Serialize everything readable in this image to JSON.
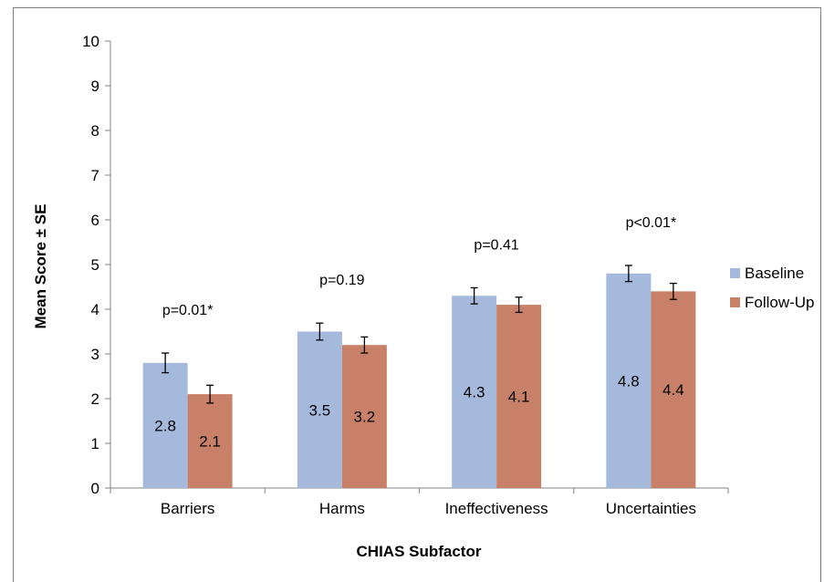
{
  "chart_data": {
    "type": "bar",
    "title": "",
    "xlabel": "CHIAS Subfactor",
    "ylabel": "Mean Score ± SE",
    "ylim": [
      0,
      10
    ],
    "yticks": [
      "0",
      "1",
      "2",
      "3",
      "4",
      "5",
      "6",
      "7",
      "8",
      "9",
      "10"
    ],
    "categories": [
      "Barriers",
      "Harms",
      "Ineffectiveness",
      "Uncertainties"
    ],
    "series": [
      {
        "name": "Baseline",
        "color": "#a5b9dd",
        "values": [
          2.8,
          3.5,
          4.3,
          4.8
        ],
        "value_labels": [
          "2.8",
          "3.5",
          "4.3",
          "4.8"
        ],
        "error": [
          0.22,
          0.19,
          0.18,
          0.18
        ]
      },
      {
        "name": "Follow-Up",
        "color": "#c98068",
        "values": [
          2.1,
          3.2,
          4.1,
          4.4
        ],
        "value_labels": [
          "2.1",
          "3.2",
          "4.1",
          "4.4"
        ],
        "error": [
          0.2,
          0.18,
          0.17,
          0.18
        ]
      }
    ],
    "annotations": [
      "p=0.01*",
      "p=0.19",
      "p=0.41",
      "p<0.01*"
    ],
    "legend_position": "right",
    "grid": false
  }
}
